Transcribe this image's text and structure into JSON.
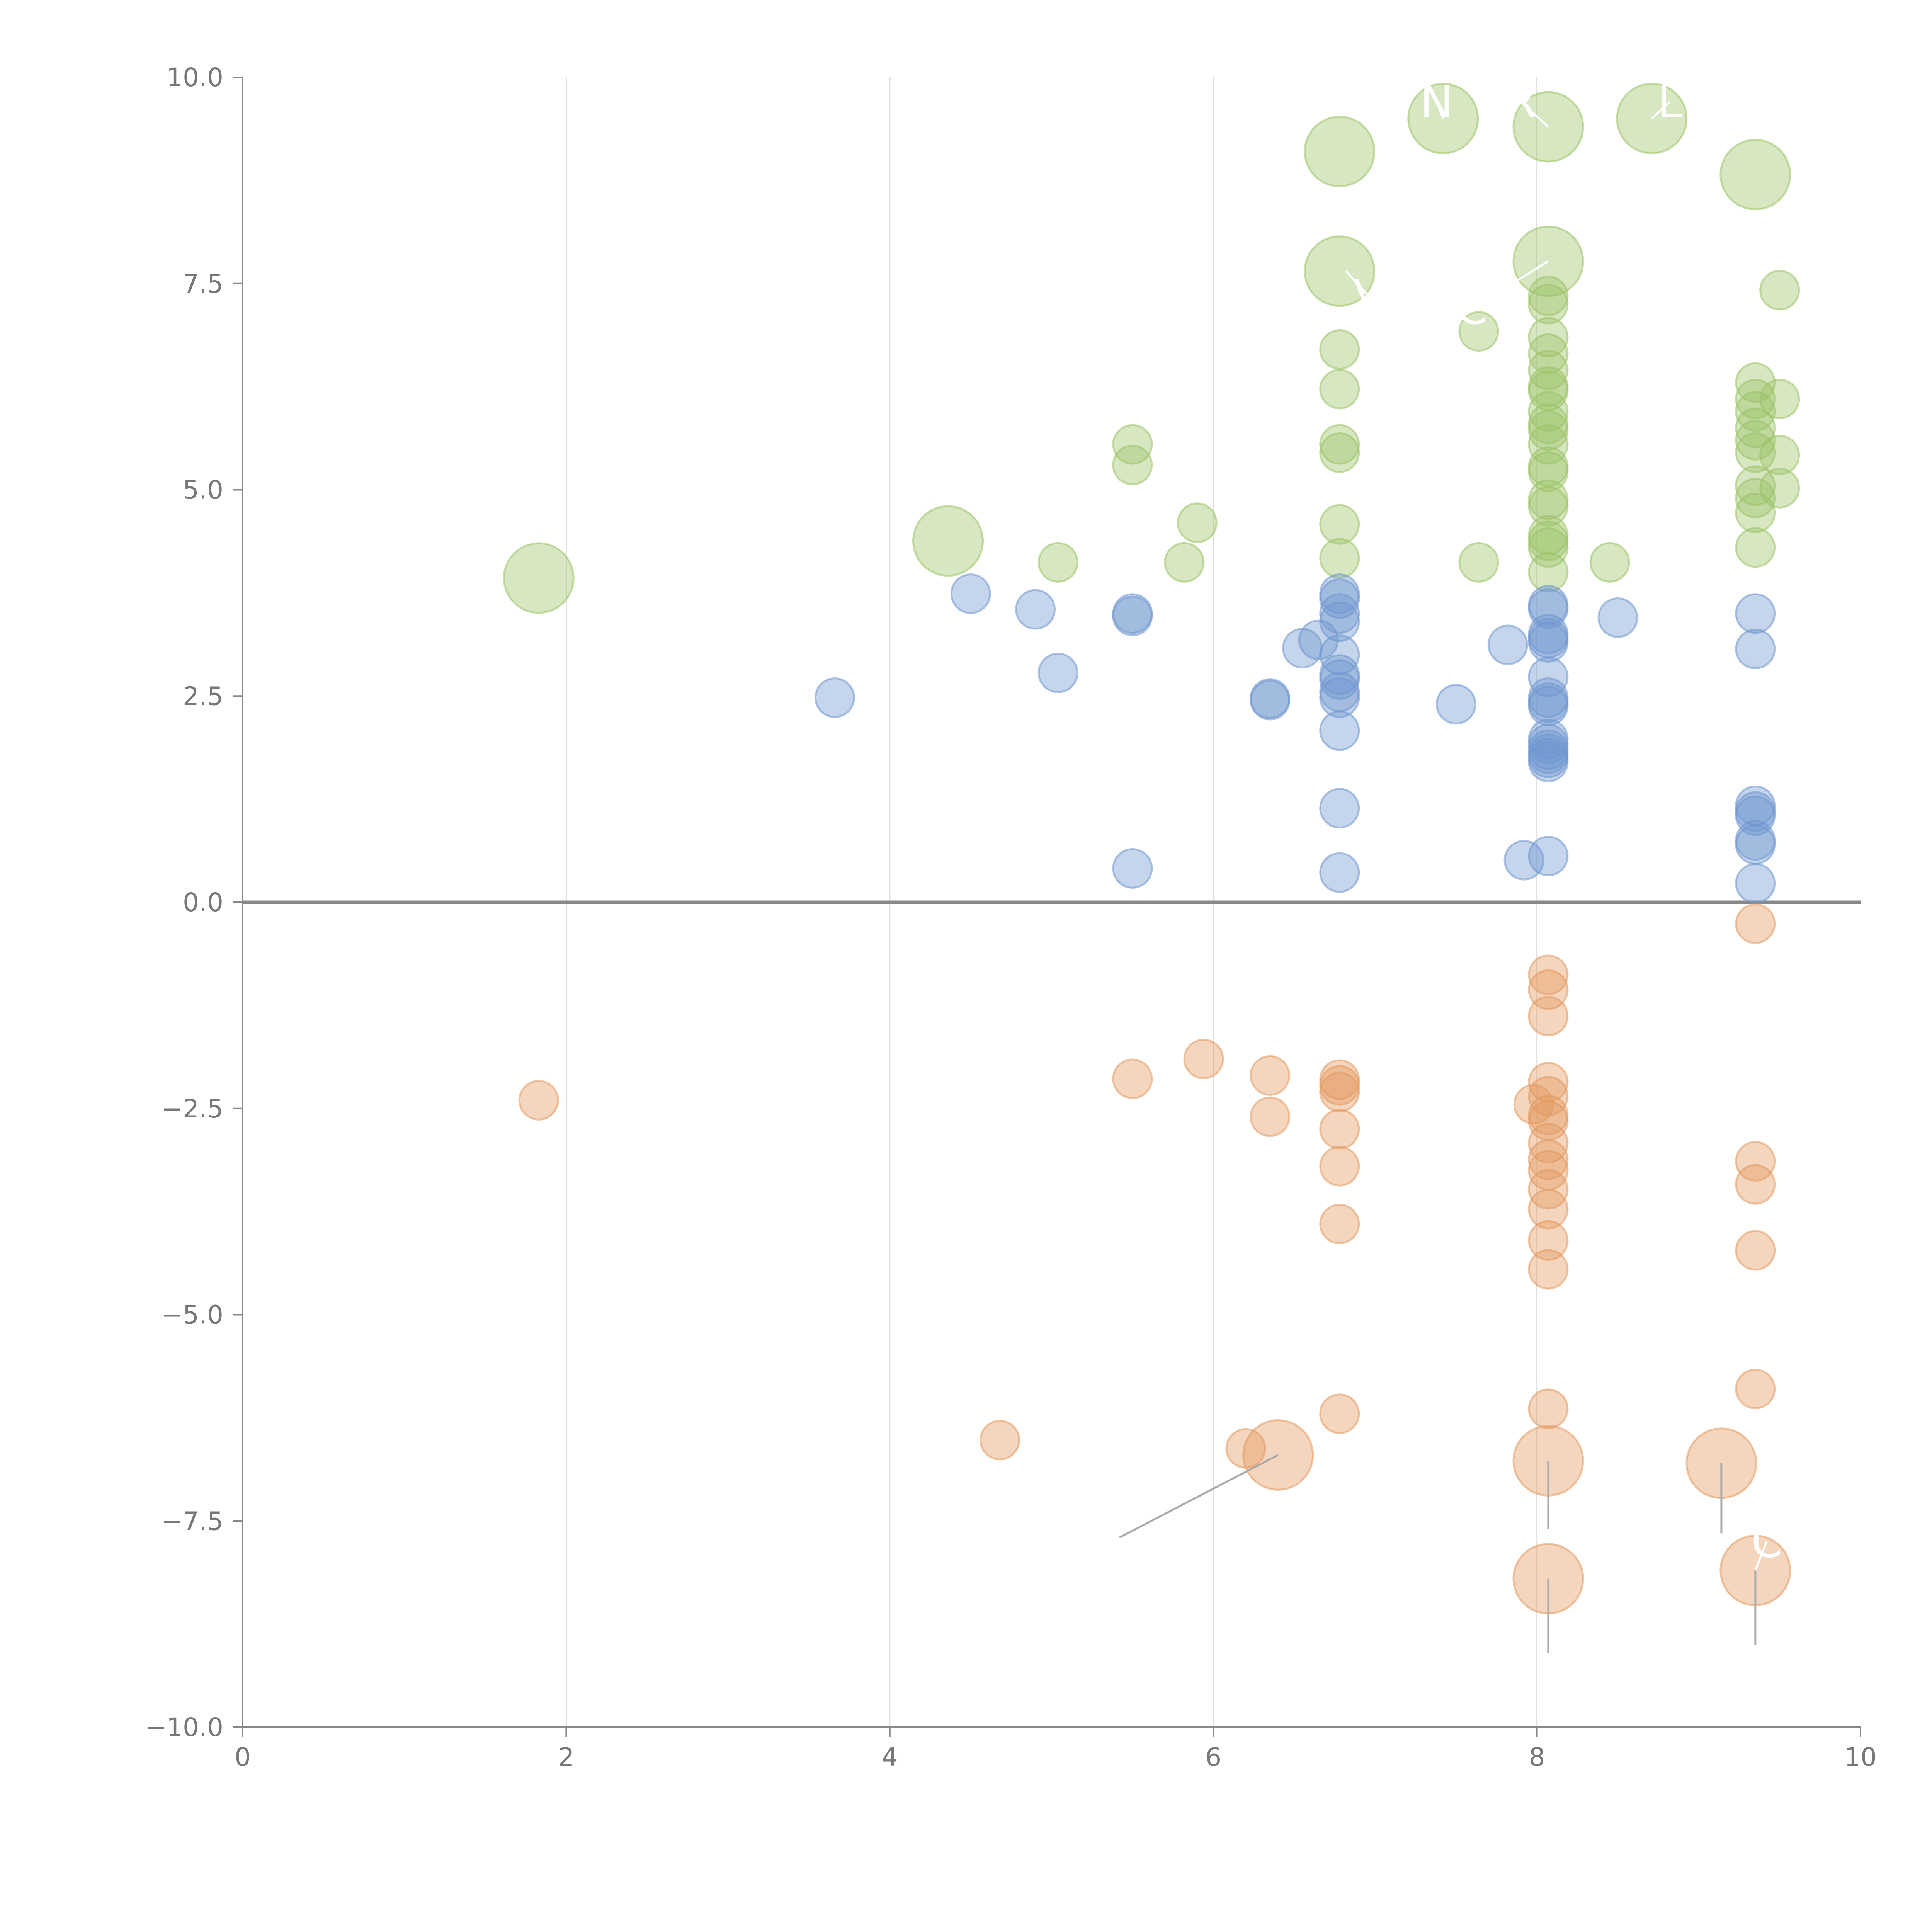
{
  "chart_data": {
    "type": "scatter",
    "title": "",
    "xlabel": "",
    "ylabel": "",
    "xlim": [
      0,
      10
    ],
    "ylim": [
      -10,
      10
    ],
    "grid": "vertical",
    "x_ticks": [
      {
        "value": 0,
        "label": "0"
      },
      {
        "value": 2,
        "label": "2"
      },
      {
        "value": 4,
        "label": "4"
      },
      {
        "value": 6,
        "label": "6"
      },
      {
        "value": 8,
        "label": "8"
      },
      {
        "value": 10,
        "label": "10"
      }
    ],
    "y_ticks": [
      {
        "value": 10,
        "label": "10.0"
      },
      {
        "value": 7.5,
        "label": "7.5"
      },
      {
        "value": 5,
        "label": "5.0"
      },
      {
        "value": 2.5,
        "label": "2.5"
      },
      {
        "value": 0,
        "label": "0.0"
      },
      {
        "value": -2.5,
        "label": "−2.5"
      },
      {
        "value": -5,
        "label": "−5.0"
      },
      {
        "value": -7.5,
        "label": "−7.5"
      },
      {
        "value": -10,
        "label": "−10.0"
      }
    ],
    "series": [
      {
        "name": "green",
        "color": "#9bc266",
        "points": [
          {
            "x": 1.83,
            "y": 3.93,
            "s": 1
          },
          {
            "x": 4.36,
            "y": 4.38,
            "s": 1
          },
          {
            "x": 6.78,
            "y": 9.1,
            "s": 1
          },
          {
            "x": 6.78,
            "y": 7.65,
            "s": 1
          },
          {
            "x": 7.42,
            "y": 9.5,
            "s": 1
          },
          {
            "x": 8.07,
            "y": 9.4,
            "s": 1
          },
          {
            "x": 8.71,
            "y": 9.5,
            "s": 1
          },
          {
            "x": 9.35,
            "y": 8.82,
            "s": 1
          },
          {
            "x": 8.07,
            "y": 7.77,
            "s": 1
          },
          {
            "x": 5.5,
            "y": 5.55,
            "s": 0
          },
          {
            "x": 5.5,
            "y": 5.3,
            "s": 0
          },
          {
            "x": 5.04,
            "y": 4.12,
            "s": 0
          },
          {
            "x": 5.82,
            "y": 4.12,
            "s": 0
          },
          {
            "x": 5.9,
            "y": 4.6,
            "s": 0
          },
          {
            "x": 6.78,
            "y": 6.7,
            "s": 0
          },
          {
            "x": 6.78,
            "y": 6.22,
            "s": 0
          },
          {
            "x": 6.78,
            "y": 5.55,
            "s": 0
          },
          {
            "x": 6.78,
            "y": 5.45,
            "s": 0
          },
          {
            "x": 6.78,
            "y": 4.58,
            "s": 0
          },
          {
            "x": 6.78,
            "y": 4.17,
            "s": 0
          },
          {
            "x": 7.64,
            "y": 6.92,
            "s": 0
          },
          {
            "x": 7.64,
            "y": 4.12,
            "s": 0
          },
          {
            "x": 8.45,
            "y": 4.12,
            "s": 0
          },
          {
            "x": 8.07,
            "y": 7.35,
            "s": 0
          },
          {
            "x": 8.07,
            "y": 7.25,
            "s": 0
          },
          {
            "x": 8.07,
            "y": 6.85,
            "s": 0
          },
          {
            "x": 8.07,
            "y": 6.65,
            "s": 0
          },
          {
            "x": 8.07,
            "y": 6.45,
            "s": 0
          },
          {
            "x": 8.07,
            "y": 6.25,
            "s": 0
          },
          {
            "x": 8.07,
            "y": 6.2,
            "s": 0
          },
          {
            "x": 8.07,
            "y": 5.95,
            "s": 0
          },
          {
            "x": 8.07,
            "y": 5.8,
            "s": 0
          },
          {
            "x": 8.07,
            "y": 5.72,
            "s": 0
          },
          {
            "x": 8.07,
            "y": 5.55,
            "s": 0
          },
          {
            "x": 8.07,
            "y": 5.28,
            "s": 0
          },
          {
            "x": 8.07,
            "y": 5.22,
            "s": 0
          },
          {
            "x": 8.07,
            "y": 4.88,
            "s": 0
          },
          {
            "x": 8.07,
            "y": 4.8,
            "s": 0
          },
          {
            "x": 8.07,
            "y": 4.45,
            "s": 0
          },
          {
            "x": 8.07,
            "y": 4.38,
            "s": 0
          },
          {
            "x": 8.07,
            "y": 4.3,
            "s": 0
          },
          {
            "x": 8.07,
            "y": 4.0,
            "s": 0
          },
          {
            "x": 9.35,
            "y": 6.3,
            "s": 0
          },
          {
            "x": 9.35,
            "y": 6.1,
            "s": 0
          },
          {
            "x": 9.35,
            "y": 5.95,
            "s": 0
          },
          {
            "x": 9.35,
            "y": 5.75,
            "s": 0
          },
          {
            "x": 9.35,
            "y": 5.6,
            "s": 0
          },
          {
            "x": 9.35,
            "y": 5.45,
            "s": 0
          },
          {
            "x": 9.35,
            "y": 5.05,
            "s": 0
          },
          {
            "x": 9.35,
            "y": 4.9,
            "s": 0
          },
          {
            "x": 9.35,
            "y": 4.72,
            "s": 0
          },
          {
            "x": 9.35,
            "y": 4.3,
            "s": 0
          },
          {
            "x": 9.5,
            "y": 7.42,
            "s": 0
          },
          {
            "x": 9.5,
            "y": 6.1,
            "s": 0
          },
          {
            "x": 9.5,
            "y": 5.42,
            "s": 0
          },
          {
            "x": 9.5,
            "y": 5.02,
            "s": 0
          }
        ]
      },
      {
        "name": "blue",
        "color": "#6f96cf",
        "points": [
          {
            "x": 3.66,
            "y": 2.48,
            "s": 0
          },
          {
            "x": 4.5,
            "y": 3.74,
            "s": 0
          },
          {
            "x": 4.9,
            "y": 3.55,
            "s": 0
          },
          {
            "x": 5.04,
            "y": 2.78,
            "s": 0
          },
          {
            "x": 5.5,
            "y": 3.5,
            "s": 0
          },
          {
            "x": 5.5,
            "y": 3.47,
            "s": 0
          },
          {
            "x": 5.5,
            "y": 0.41,
            "s": 0
          },
          {
            "x": 6.35,
            "y": 2.47,
            "s": 0
          },
          {
            "x": 6.35,
            "y": 2.45,
            "s": 0
          },
          {
            "x": 6.55,
            "y": 3.08,
            "s": 0
          },
          {
            "x": 6.65,
            "y": 3.18,
            "s": 0
          },
          {
            "x": 6.78,
            "y": 3.74,
            "s": 0
          },
          {
            "x": 6.78,
            "y": 3.68,
            "s": 0
          },
          {
            "x": 6.78,
            "y": 3.5,
            "s": 0
          },
          {
            "x": 6.78,
            "y": 3.4,
            "s": 0
          },
          {
            "x": 6.78,
            "y": 3.0,
            "s": 0
          },
          {
            "x": 6.78,
            "y": 2.76,
            "s": 0
          },
          {
            "x": 6.78,
            "y": 2.7,
            "s": 0
          },
          {
            "x": 6.78,
            "y": 2.55,
            "s": 0
          },
          {
            "x": 6.78,
            "y": 2.48,
            "s": 0
          },
          {
            "x": 6.78,
            "y": 2.08,
            "s": 0
          },
          {
            "x": 6.78,
            "y": 1.14,
            "s": 0
          },
          {
            "x": 6.78,
            "y": 0.36,
            "s": 0
          },
          {
            "x": 7.5,
            "y": 2.4,
            "s": 0
          },
          {
            "x": 7.82,
            "y": 3.12,
            "s": 0
          },
          {
            "x": 7.92,
            "y": 0.51,
            "s": 0
          },
          {
            "x": 8.5,
            "y": 3.45,
            "s": 0
          },
          {
            "x": 8.07,
            "y": 3.6,
            "s": 0
          },
          {
            "x": 8.07,
            "y": 3.56,
            "s": 0
          },
          {
            "x": 8.07,
            "y": 3.25,
            "s": 0
          },
          {
            "x": 8.07,
            "y": 3.2,
            "s": 0
          },
          {
            "x": 8.07,
            "y": 3.15,
            "s": 0
          },
          {
            "x": 8.07,
            "y": 2.73,
            "s": 0
          },
          {
            "x": 8.07,
            "y": 2.48,
            "s": 0
          },
          {
            "x": 8.07,
            "y": 2.42,
            "s": 0
          },
          {
            "x": 8.07,
            "y": 2.38,
            "s": 0
          },
          {
            "x": 8.07,
            "y": 1.98,
            "s": 0
          },
          {
            "x": 8.07,
            "y": 1.92,
            "s": 0
          },
          {
            "x": 8.07,
            "y": 1.85,
            "s": 0
          },
          {
            "x": 8.07,
            "y": 1.8,
            "s": 0
          },
          {
            "x": 8.07,
            "y": 1.75,
            "s": 0
          },
          {
            "x": 8.07,
            "y": 1.7,
            "s": 0
          },
          {
            "x": 8.07,
            "y": 0.56,
            "s": 0
          },
          {
            "x": 9.35,
            "y": 3.5,
            "s": 0
          },
          {
            "x": 9.35,
            "y": 3.07,
            "s": 0
          },
          {
            "x": 9.35,
            "y": 1.17,
            "s": 0
          },
          {
            "x": 9.35,
            "y": 1.1,
            "s": 0
          },
          {
            "x": 9.35,
            "y": 1.05,
            "s": 0
          },
          {
            "x": 9.35,
            "y": 0.75,
            "s": 0
          },
          {
            "x": 9.35,
            "y": 0.7,
            "s": 0
          },
          {
            "x": 9.35,
            "y": 0.23,
            "s": 0
          }
        ]
      },
      {
        "name": "orange",
        "color": "#e3995f",
        "points": [
          {
            "x": 6.4,
            "y": -6.7,
            "s": 1
          },
          {
            "x": 8.07,
            "y": -6.77,
            "s": 1
          },
          {
            "x": 9.14,
            "y": -6.8,
            "s": 1
          },
          {
            "x": 8.07,
            "y": -8.2,
            "s": 1
          },
          {
            "x": 9.35,
            "y": -8.1,
            "s": 1
          },
          {
            "x": 1.83,
            "y": -2.4,
            "s": 0
          },
          {
            "x": 5.5,
            "y": -2.14,
            "s": 0
          },
          {
            "x": 5.94,
            "y": -1.9,
            "s": 0
          },
          {
            "x": 6.35,
            "y": -2.1,
            "s": 0
          },
          {
            "x": 6.35,
            "y": -2.6,
            "s": 0
          },
          {
            "x": 4.68,
            "y": -6.52,
            "s": 0
          },
          {
            "x": 6.2,
            "y": -6.62,
            "s": 0
          },
          {
            "x": 6.78,
            "y": -2.15,
            "s": 0
          },
          {
            "x": 6.78,
            "y": -2.22,
            "s": 0
          },
          {
            "x": 6.78,
            "y": -2.3,
            "s": 0
          },
          {
            "x": 6.78,
            "y": -2.75,
            "s": 0
          },
          {
            "x": 6.78,
            "y": -3.2,
            "s": 0
          },
          {
            "x": 6.78,
            "y": -3.9,
            "s": 0
          },
          {
            "x": 6.78,
            "y": -6.2,
            "s": 0
          },
          {
            "x": 8.07,
            "y": -0.88,
            "s": 0
          },
          {
            "x": 8.07,
            "y": -1.06,
            "s": 0
          },
          {
            "x": 8.07,
            "y": -1.38,
            "s": 0
          },
          {
            "x": 8.07,
            "y": -2.18,
            "s": 0
          },
          {
            "x": 7.98,
            "y": -2.45,
            "s": 0
          },
          {
            "x": 8.07,
            "y": -2.35,
            "s": 0
          },
          {
            "x": 8.07,
            "y": -2.58,
            "s": 0
          },
          {
            "x": 8.07,
            "y": -2.65,
            "s": 0
          },
          {
            "x": 8.07,
            "y": -2.92,
            "s": 0
          },
          {
            "x": 8.07,
            "y": -3.12,
            "s": 0
          },
          {
            "x": 8.07,
            "y": -3.25,
            "s": 0
          },
          {
            "x": 8.07,
            "y": -3.48,
            "s": 0
          },
          {
            "x": 8.07,
            "y": -3.72,
            "s": 0
          },
          {
            "x": 8.07,
            "y": -4.1,
            "s": 0
          },
          {
            "x": 8.07,
            "y": -4.45,
            "s": 0
          },
          {
            "x": 8.07,
            "y": -6.14,
            "s": 0
          },
          {
            "x": 9.35,
            "y": -0.26,
            "s": 0
          },
          {
            "x": 9.35,
            "y": -3.14,
            "s": 0
          },
          {
            "x": 9.35,
            "y": -3.42,
            "s": 0
          },
          {
            "x": 9.35,
            "y": -4.22,
            "s": 0
          },
          {
            "x": 9.35,
            "y": -5.9,
            "s": 0
          }
        ]
      }
    ],
    "annotations": [
      {
        "text": "N",
        "x": 7.38,
        "y": 9.7,
        "anchor_x": 7.42,
        "anchor_y": 9.5,
        "color": "#ffffff"
      },
      {
        "text": "R",
        "x": 7.9,
        "y": 9.7,
        "anchor_x": 8.07,
        "anchor_y": 9.4,
        "color": "#ffffff"
      },
      {
        "text": "L",
        "x": 8.82,
        "y": 9.7,
        "anchor_x": 8.71,
        "anchor_y": 9.5,
        "color": "#ffffff"
      },
      {
        "text": "V",
        "x": 6.96,
        "y": 7.35,
        "anchor_x": 6.82,
        "anchor_y": 7.65,
        "color": "#ffffff"
      },
      {
        "text": "C",
        "x": 7.6,
        "y": 7.2,
        "anchor_x": 8.07,
        "anchor_y": 7.77,
        "color": "#ffffff"
      },
      {
        "text": "C",
        "x": 9.42,
        "y": -7.75,
        "anchor_x": 9.35,
        "anchor_y": -8.1,
        "color": "#ffffff"
      },
      {
        "text": "",
        "x": 5.42,
        "y": -7.7,
        "anchor_x": 6.4,
        "anchor_y": -6.7,
        "color": "#aaaaaa"
      },
      {
        "text": "",
        "x": 8.07,
        "y": -7.6,
        "anchor_x": 8.07,
        "anchor_y": -6.77,
        "color": "#aaaaaa"
      },
      {
        "text": "",
        "x": 9.14,
        "y": -7.65,
        "anchor_x": 9.14,
        "anchor_y": -6.8,
        "color": "#aaaaaa"
      },
      {
        "text": "",
        "x": 8.07,
        "y": -9.1,
        "anchor_x": 8.07,
        "anchor_y": -8.2,
        "color": "#aaaaaa"
      },
      {
        "text": "",
        "x": 9.35,
        "y": -9.0,
        "anchor_x": 9.35,
        "anchor_y": -8.1,
        "color": "#aaaaaa"
      }
    ]
  }
}
